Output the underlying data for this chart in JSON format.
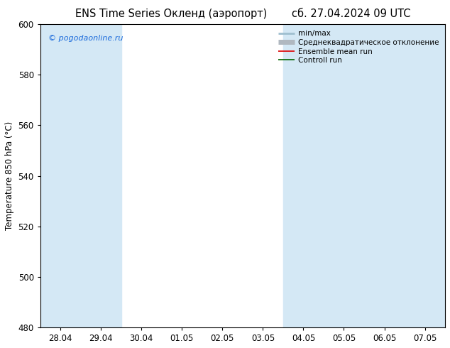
{
  "title_left": "ENS Time Series Окленд (аэропорт)",
  "title_right": "сб. 27.04.2024 09 UTC",
  "ylabel": "Temperature 850 hPa (°С)",
  "ylim": [
    480,
    600
  ],
  "yticks": [
    480,
    500,
    520,
    540,
    560,
    580,
    600
  ],
  "copyright": "© pogodaonline.ru",
  "copyright_color": "#1a6adb",
  "x_labels": [
    "28.04",
    "29.04",
    "30.04",
    "01.05",
    "02.05",
    "03.05",
    "04.05",
    "05.05",
    "06.05",
    "07.05"
  ],
  "shaded_bands": [
    0,
    1,
    6,
    7,
    8,
    9
  ],
  "band_color": "#d4e8f5",
  "background_color": "#ffffff",
  "legend_items": [
    {
      "label": "min/max",
      "color": "#9fbfcf",
      "lw": 2.0
    },
    {
      "label": "Среднеквадратическое отклонение",
      "color": "#b0b8c0",
      "lw": 5.0
    },
    {
      "label": "Ensemble mean run",
      "color": "#dd0000",
      "lw": 1.2
    },
    {
      "label": "Controll run",
      "color": "#006600",
      "lw": 1.2
    }
  ],
  "title_fontsize": 10.5,
  "tick_fontsize": 8.5,
  "legend_fontsize": 7.5,
  "ylabel_fontsize": 8.5
}
